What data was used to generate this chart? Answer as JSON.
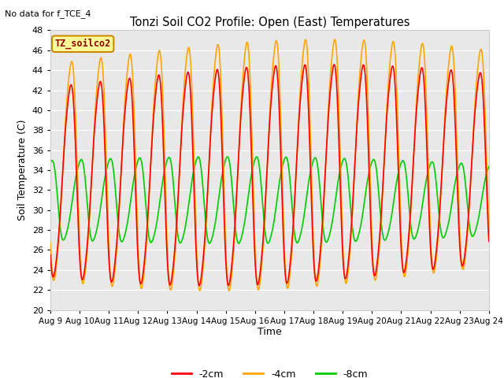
{
  "title": "Tonzi Soil CO2 Profile: Open (East) Temperatures",
  "subtitle": "No data for f_TCE_4",
  "ylabel": "Soil Temperature (C)",
  "xlabel": "Time",
  "legend_label": "TZ_soilco2",
  "ylim": [
    20,
    48
  ],
  "yticks": [
    20,
    22,
    24,
    26,
    28,
    30,
    32,
    34,
    36,
    38,
    40,
    42,
    44,
    46,
    48
  ],
  "xtick_labels": [
    "Aug 9",
    "Aug 10",
    "Aug 11",
    "Aug 12",
    "Aug 13",
    "Aug 14",
    "Aug 15",
    "Aug 16",
    "Aug 17",
    "Aug 18",
    "Aug 19",
    "Aug 20",
    "Aug 21",
    "Aug 22",
    "Aug 23",
    "Aug 24"
  ],
  "color_2cm": "#FF0000",
  "color_4cm": "#FFA500",
  "color_8cm": "#00CC00",
  "line_width": 1.2,
  "bg_color": "#E8E8E8",
  "legend_box_color": "#FFFF99",
  "legend_box_border": "#CC8800"
}
